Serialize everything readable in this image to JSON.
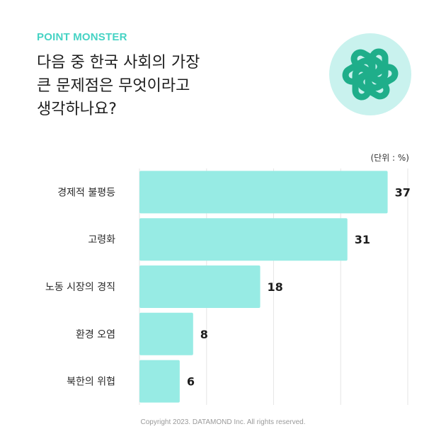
{
  "header": {
    "brand": "POINT MONSTER",
    "title": "다음 중 한국 사회의 가장\n큰 문제점은 무엇이라고\n생각하나요?"
  },
  "logo": {
    "icon": "openai-knot-icon",
    "bg_color": "#c9f2ee",
    "fg_color": "#1fae8a"
  },
  "chart_data": {
    "type": "bar",
    "orientation": "horizontal",
    "unit_label": "(단위 : %)",
    "categories": [
      "경제적 불평등",
      "고령화",
      "노동 시장의 경직",
      "환경 오염",
      "북한의 위협"
    ],
    "values": [
      37,
      31,
      18,
      8,
      6
    ],
    "xlim": [
      0,
      40
    ],
    "grid": true,
    "bar_color": "#97ebe4"
  },
  "footer": {
    "copyright": "Copyright 2023. DATAMOND Inc. All rights reserved."
  }
}
